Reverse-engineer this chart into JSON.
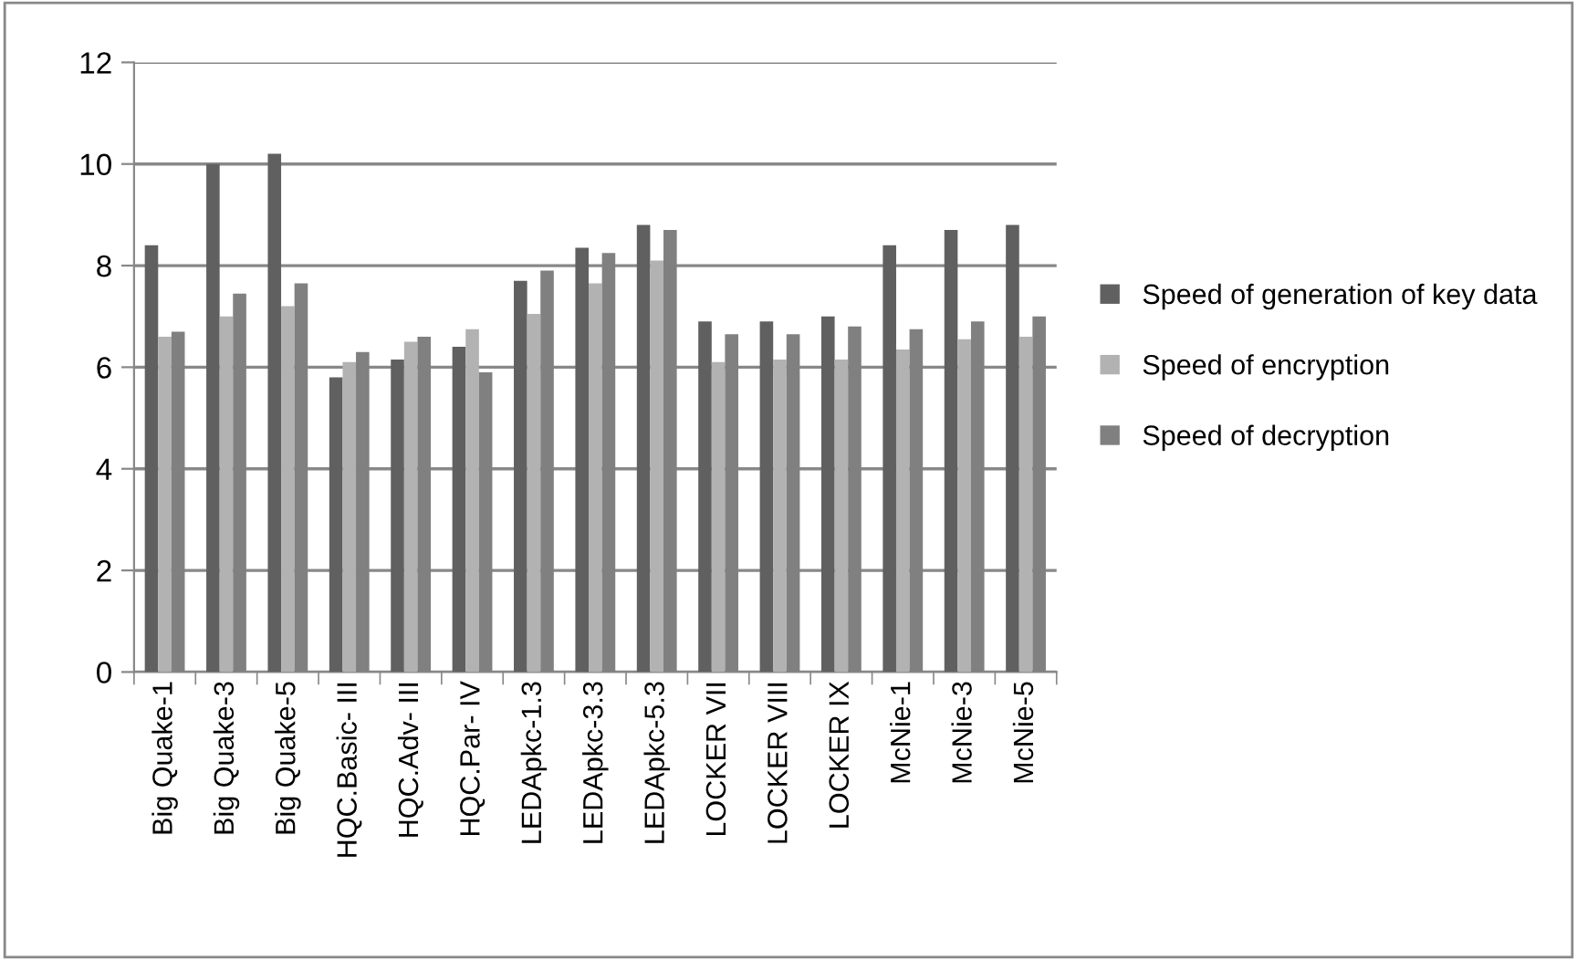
{
  "chart_data": {
    "type": "bar",
    "categories": [
      "Big Quake-1",
      "Big Quake-3",
      "Big Quake-5",
      "HQC.Basic- III",
      "HQC.Adv- III",
      "HQC.Par- IV",
      "LEDApkc-1.3",
      "LEDApkc-3.3",
      "LEDApkc-5.3",
      "LOCKER VII",
      "LOCKER VIII",
      "LOCKER IX",
      "McNie-1",
      "McNie-3",
      "McNie-5"
    ],
    "series": [
      {
        "name": "Speed of generation of key data",
        "color": "#606060",
        "values": [
          8.4,
          10.0,
          10.2,
          5.8,
          6.15,
          6.4,
          7.7,
          8.35,
          8.8,
          6.9,
          6.9,
          7.0,
          8.4,
          8.7,
          8.8
        ]
      },
      {
        "name": "Speed of encryption",
        "color": "#b2b2b2",
        "values": [
          6.6,
          7.0,
          7.2,
          6.1,
          6.5,
          6.75,
          7.05,
          7.65,
          8.1,
          6.1,
          6.15,
          6.15,
          6.35,
          6.55,
          6.6
        ]
      },
      {
        "name": "Speed of decryption",
        "color": "#808080",
        "values": [
          6.7,
          7.45,
          7.65,
          6.3,
          6.6,
          5.9,
          7.9,
          8.25,
          8.7,
          6.65,
          6.65,
          6.8,
          6.75,
          6.9,
          7.0
        ]
      }
    ],
    "ylim": [
      0,
      12
    ],
    "yticks": [
      0,
      2,
      4,
      6,
      8,
      10,
      12
    ],
    "grid": "y",
    "legend": "right"
  }
}
